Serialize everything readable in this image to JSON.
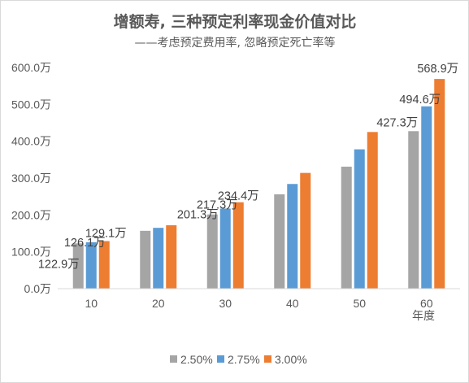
{
  "chart_data": {
    "type": "bar",
    "title": "增额寿, 三种预定利率现金价值对比",
    "subtitle": "——考虑预定费用率, 忽略预定死亡率等",
    "xlabel": "年度",
    "ylabel": "",
    "categories": [
      "10",
      "20",
      "30",
      "40",
      "50",
      "60"
    ],
    "ylim": [
      0,
      600
    ],
    "yticks": [
      0,
      100,
      200,
      300,
      400,
      500,
      600
    ],
    "ytick_labels": [
      "0.0万",
      "100.0万",
      "200.0万",
      "300.0万",
      "400.0万",
      "500.0万",
      "600.0万"
    ],
    "grid": false,
    "legend_position": "bottom",
    "series": [
      {
        "name": "2.50%",
        "color": "#a5a5a5",
        "values": [
          122.9,
          157,
          201.3,
          256,
          331,
          427.3
        ]
      },
      {
        "name": "2.75%",
        "color": "#5b9bd5",
        "values": [
          126.1,
          165,
          217.3,
          284,
          378,
          494.6
        ]
      },
      {
        "name": "3.00%",
        "color": "#ed7d31",
        "values": [
          129.1,
          172,
          234.4,
          314,
          425,
          568.9
        ]
      }
    ],
    "data_labels": [
      {
        "category": "10",
        "series": "2.50%",
        "text": "122.9万"
      },
      {
        "category": "10",
        "series": "2.75%",
        "text": "126.1万"
      },
      {
        "category": "10",
        "series": "3.00%",
        "text": "129.1万"
      },
      {
        "category": "30",
        "series": "2.50%",
        "text": "201.3万"
      },
      {
        "category": "30",
        "series": "2.75%",
        "text": "217.3万"
      },
      {
        "category": "30",
        "series": "3.00%",
        "text": "234.4万"
      },
      {
        "category": "60",
        "series": "2.50%",
        "text": "427.3万"
      },
      {
        "category": "60",
        "series": "2.75%",
        "text": "494.6万"
      },
      {
        "category": "60",
        "series": "3.00%",
        "text": "568.9万"
      }
    ]
  }
}
